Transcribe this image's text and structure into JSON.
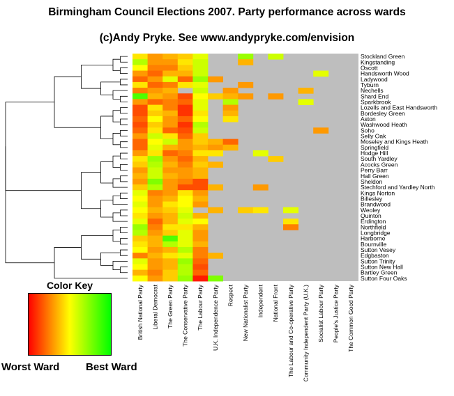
{
  "title": "Birmingham Council Elections 2007. Party performance across wards",
  "subtitle": "(c)Andy Pryke. See www.andypryke.com/envision",
  "key": {
    "title": "Color Key",
    "low_label": "Worst Ward",
    "high_label": "Best Ward",
    "colors": [
      "#ff0000",
      "#ff8000",
      "#ffff00",
      "#80ff00",
      "#00ff00"
    ]
  },
  "colors": {
    "missing": "#bebebe"
  },
  "chart_data": {
    "type": "heatmap",
    "title": "Birmingham Council Elections 2007. Party performance across wards",
    "scale": "0 = worst ward, 1 = best ward for each party; null = party did not stand",
    "parties": [
      "British National Party",
      "Liberal Democrat",
      "The Green Party",
      "The Conservative Party",
      "The Labour Party",
      "U.K. Independence Party",
      "Respect",
      "New Nationalist Party",
      "Independent",
      "National Front",
      "The Labour and Co-operative Party",
      "Community Independent Party (U.K.)",
      "Socialist Labour Party",
      "People's Justice Party",
      "The Common Good Party"
    ],
    "wards": [
      "Stockland Green",
      "Kingstanding",
      "Oscott",
      "Handsworth Wood",
      "Ladywood",
      "Tyburn",
      "Nechells",
      "Shard End",
      "Sparkbrook",
      "Lozells and East Handsworth",
      "Bordesley Green",
      "Aston",
      "Washwood Heath",
      "Soho",
      "Selly Oak",
      "Moseley and Kings Heath",
      "Springfield",
      "Hodge Hill",
      "South Yardley",
      "Acocks Green",
      "Perry Barr",
      "Hall Green",
      "Sheldon",
      "Stechford and Yardley North",
      "Kings Norton",
      "Billesley",
      "Brandwood",
      "Weoley",
      "Quinton",
      "Erdington",
      "Northfield",
      "Longbridge",
      "Harborne",
      "Bournville",
      "Sutton Vesey",
      "Edgbaston",
      "Sutton Trinity",
      "Sutton New Hall",
      "Bartley Green",
      "Sutton Four Oaks"
    ],
    "values": [
      [
        0.45,
        0.3,
        0.35,
        0.4,
        0.55,
        null,
        null,
        0.7,
        null,
        0.6,
        null,
        null,
        null,
        null,
        null
      ],
      [
        0.65,
        0.3,
        0.3,
        0.45,
        0.6,
        null,
        null,
        0.35,
        null,
        null,
        null,
        null,
        null,
        null,
        null
      ],
      [
        0.5,
        0.25,
        0.25,
        0.4,
        0.6,
        null,
        null,
        null,
        null,
        null,
        null,
        null,
        null,
        null,
        null
      ],
      [
        0.3,
        0.2,
        0.35,
        0.35,
        0.6,
        null,
        null,
        null,
        null,
        null,
        null,
        null,
        0.55,
        null,
        null
      ],
      [
        0.2,
        0.3,
        0.55,
        0.2,
        0.7,
        0.3,
        null,
        null,
        null,
        null,
        null,
        null,
        null,
        null,
        null
      ],
      [
        0.45,
        0.2,
        0.25,
        0.45,
        0.55,
        null,
        null,
        0.3,
        null,
        null,
        null,
        null,
        null,
        null,
        null
      ],
      [
        0.25,
        0.3,
        0.35,
        null,
        0.6,
        null,
        0.3,
        null,
        null,
        null,
        null,
        0.35,
        null,
        null,
        null
      ],
      [
        0.85,
        0.35,
        0.3,
        0.15,
        0.5,
        0.4,
        0.35,
        0.3,
        null,
        0.3,
        null,
        null,
        null,
        null,
        null
      ],
      [
        0.3,
        0.2,
        0.25,
        0.2,
        0.55,
        null,
        0.65,
        null,
        null,
        null,
        null,
        0.55,
        null,
        null,
        null
      ],
      [
        0.15,
        0.45,
        0.25,
        0.1,
        0.55,
        null,
        0.3,
        null,
        null,
        null,
        null,
        null,
        null,
        null,
        null
      ],
      [
        0.15,
        0.4,
        0.35,
        0.1,
        0.45,
        null,
        0.35,
        null,
        null,
        null,
        null,
        null,
        null,
        null,
        null
      ],
      [
        0.2,
        0.5,
        0.3,
        0.2,
        0.5,
        null,
        0.45,
        null,
        null,
        null,
        null,
        null,
        null,
        null,
        null
      ],
      [
        0.15,
        0.4,
        0.3,
        0.1,
        0.65,
        null,
        null,
        null,
        null,
        null,
        null,
        null,
        null,
        null,
        null
      ],
      [
        0.2,
        0.45,
        0.2,
        0.15,
        0.6,
        null,
        null,
        null,
        null,
        null,
        null,
        null,
        0.3,
        null,
        null
      ],
      [
        0.3,
        0.6,
        0.45,
        0.2,
        0.4,
        null,
        null,
        null,
        null,
        null,
        null,
        null,
        null,
        null,
        null
      ],
      [
        0.2,
        0.5,
        0.6,
        0.3,
        0.4,
        0.35,
        0.2,
        null,
        null,
        null,
        null,
        null,
        null,
        null,
        null
      ],
      [
        0.2,
        0.55,
        0.35,
        0.3,
        0.35,
        0.3,
        0.35,
        null,
        null,
        null,
        null,
        null,
        null,
        null,
        null
      ],
      [
        0.3,
        0.45,
        0.2,
        0.25,
        0.45,
        0.45,
        null,
        null,
        0.55,
        null,
        null,
        null,
        null,
        null,
        null
      ],
      [
        0.45,
        0.7,
        0.3,
        0.2,
        0.35,
        null,
        null,
        null,
        null,
        0.4,
        null,
        null,
        null,
        null,
        null
      ],
      [
        0.4,
        0.65,
        0.35,
        0.25,
        0.4,
        0.35,
        null,
        null,
        null,
        null,
        null,
        null,
        null,
        null,
        null
      ],
      [
        0.3,
        0.6,
        0.3,
        0.3,
        0.35,
        null,
        null,
        null,
        null,
        null,
        null,
        null,
        null,
        null,
        null
      ],
      [
        0.35,
        0.6,
        0.35,
        0.3,
        0.35,
        null,
        null,
        null,
        null,
        null,
        null,
        null,
        null,
        null,
        null
      ],
      [
        0.3,
        0.75,
        0.3,
        0.25,
        0.15,
        null,
        null,
        null,
        null,
        null,
        null,
        null,
        null,
        null,
        null
      ],
      [
        0.4,
        0.65,
        0.3,
        0.15,
        0.15,
        0.35,
        null,
        null,
        0.3,
        null,
        null,
        null,
        null,
        null,
        null
      ],
      [
        0.55,
        0.25,
        0.3,
        0.45,
        0.3,
        null,
        null,
        null,
        null,
        null,
        null,
        null,
        null,
        null,
        null
      ],
      [
        0.5,
        0.3,
        0.35,
        0.5,
        0.35,
        null,
        null,
        null,
        null,
        null,
        null,
        null,
        null,
        null,
        null
      ],
      [
        0.55,
        0.3,
        0.45,
        0.5,
        0.3,
        null,
        null,
        null,
        null,
        null,
        null,
        null,
        null,
        null,
        null
      ],
      [
        0.5,
        0.35,
        0.4,
        0.55,
        null,
        0.35,
        null,
        0.4,
        0.45,
        null,
        0.55,
        null,
        null,
        null,
        null
      ],
      [
        0.45,
        0.3,
        0.35,
        0.6,
        0.35,
        null,
        null,
        null,
        null,
        null,
        null,
        null,
        null,
        null,
        null
      ],
      [
        0.55,
        0.2,
        0.35,
        0.55,
        0.5,
        null,
        null,
        null,
        null,
        null,
        0.45,
        null,
        null,
        null,
        null
      ],
      [
        0.7,
        0.25,
        0.45,
        0.45,
        0.35,
        null,
        null,
        null,
        null,
        null,
        0.25,
        null,
        null,
        null,
        null
      ],
      [
        0.65,
        0.3,
        0.4,
        0.55,
        0.3,
        null,
        null,
        null,
        null,
        null,
        null,
        null,
        null,
        null,
        null
      ],
      [
        0.4,
        0.35,
        0.85,
        0.55,
        0.3,
        null,
        null,
        null,
        null,
        null,
        null,
        null,
        null,
        null,
        null
      ],
      [
        0.45,
        0.35,
        0.65,
        0.55,
        0.35,
        null,
        null,
        null,
        null,
        null,
        null,
        null,
        null,
        null,
        null
      ],
      [
        0.5,
        0.3,
        0.35,
        0.65,
        0.25,
        null,
        null,
        null,
        null,
        null,
        null,
        null,
        null,
        null,
        null
      ],
      [
        0.25,
        0.35,
        0.45,
        0.55,
        0.25,
        0.35,
        null,
        null,
        null,
        null,
        null,
        null,
        null,
        null,
        null
      ],
      [
        0.55,
        0.3,
        0.35,
        0.7,
        0.2,
        null,
        null,
        null,
        null,
        null,
        null,
        null,
        null,
        null,
        null
      ],
      [
        0.5,
        0.3,
        0.35,
        0.65,
        0.15,
        null,
        null,
        null,
        null,
        null,
        null,
        null,
        null,
        null,
        null
      ],
      [
        0.35,
        0.25,
        0.4,
        0.65,
        0.2,
        null,
        null,
        null,
        null,
        null,
        null,
        null,
        null,
        null,
        null
      ],
      [
        0.5,
        0.3,
        0.4,
        0.7,
        0.05,
        0.75,
        null,
        null,
        null,
        null,
        null,
        null,
        null,
        null,
        null
      ]
    ]
  }
}
